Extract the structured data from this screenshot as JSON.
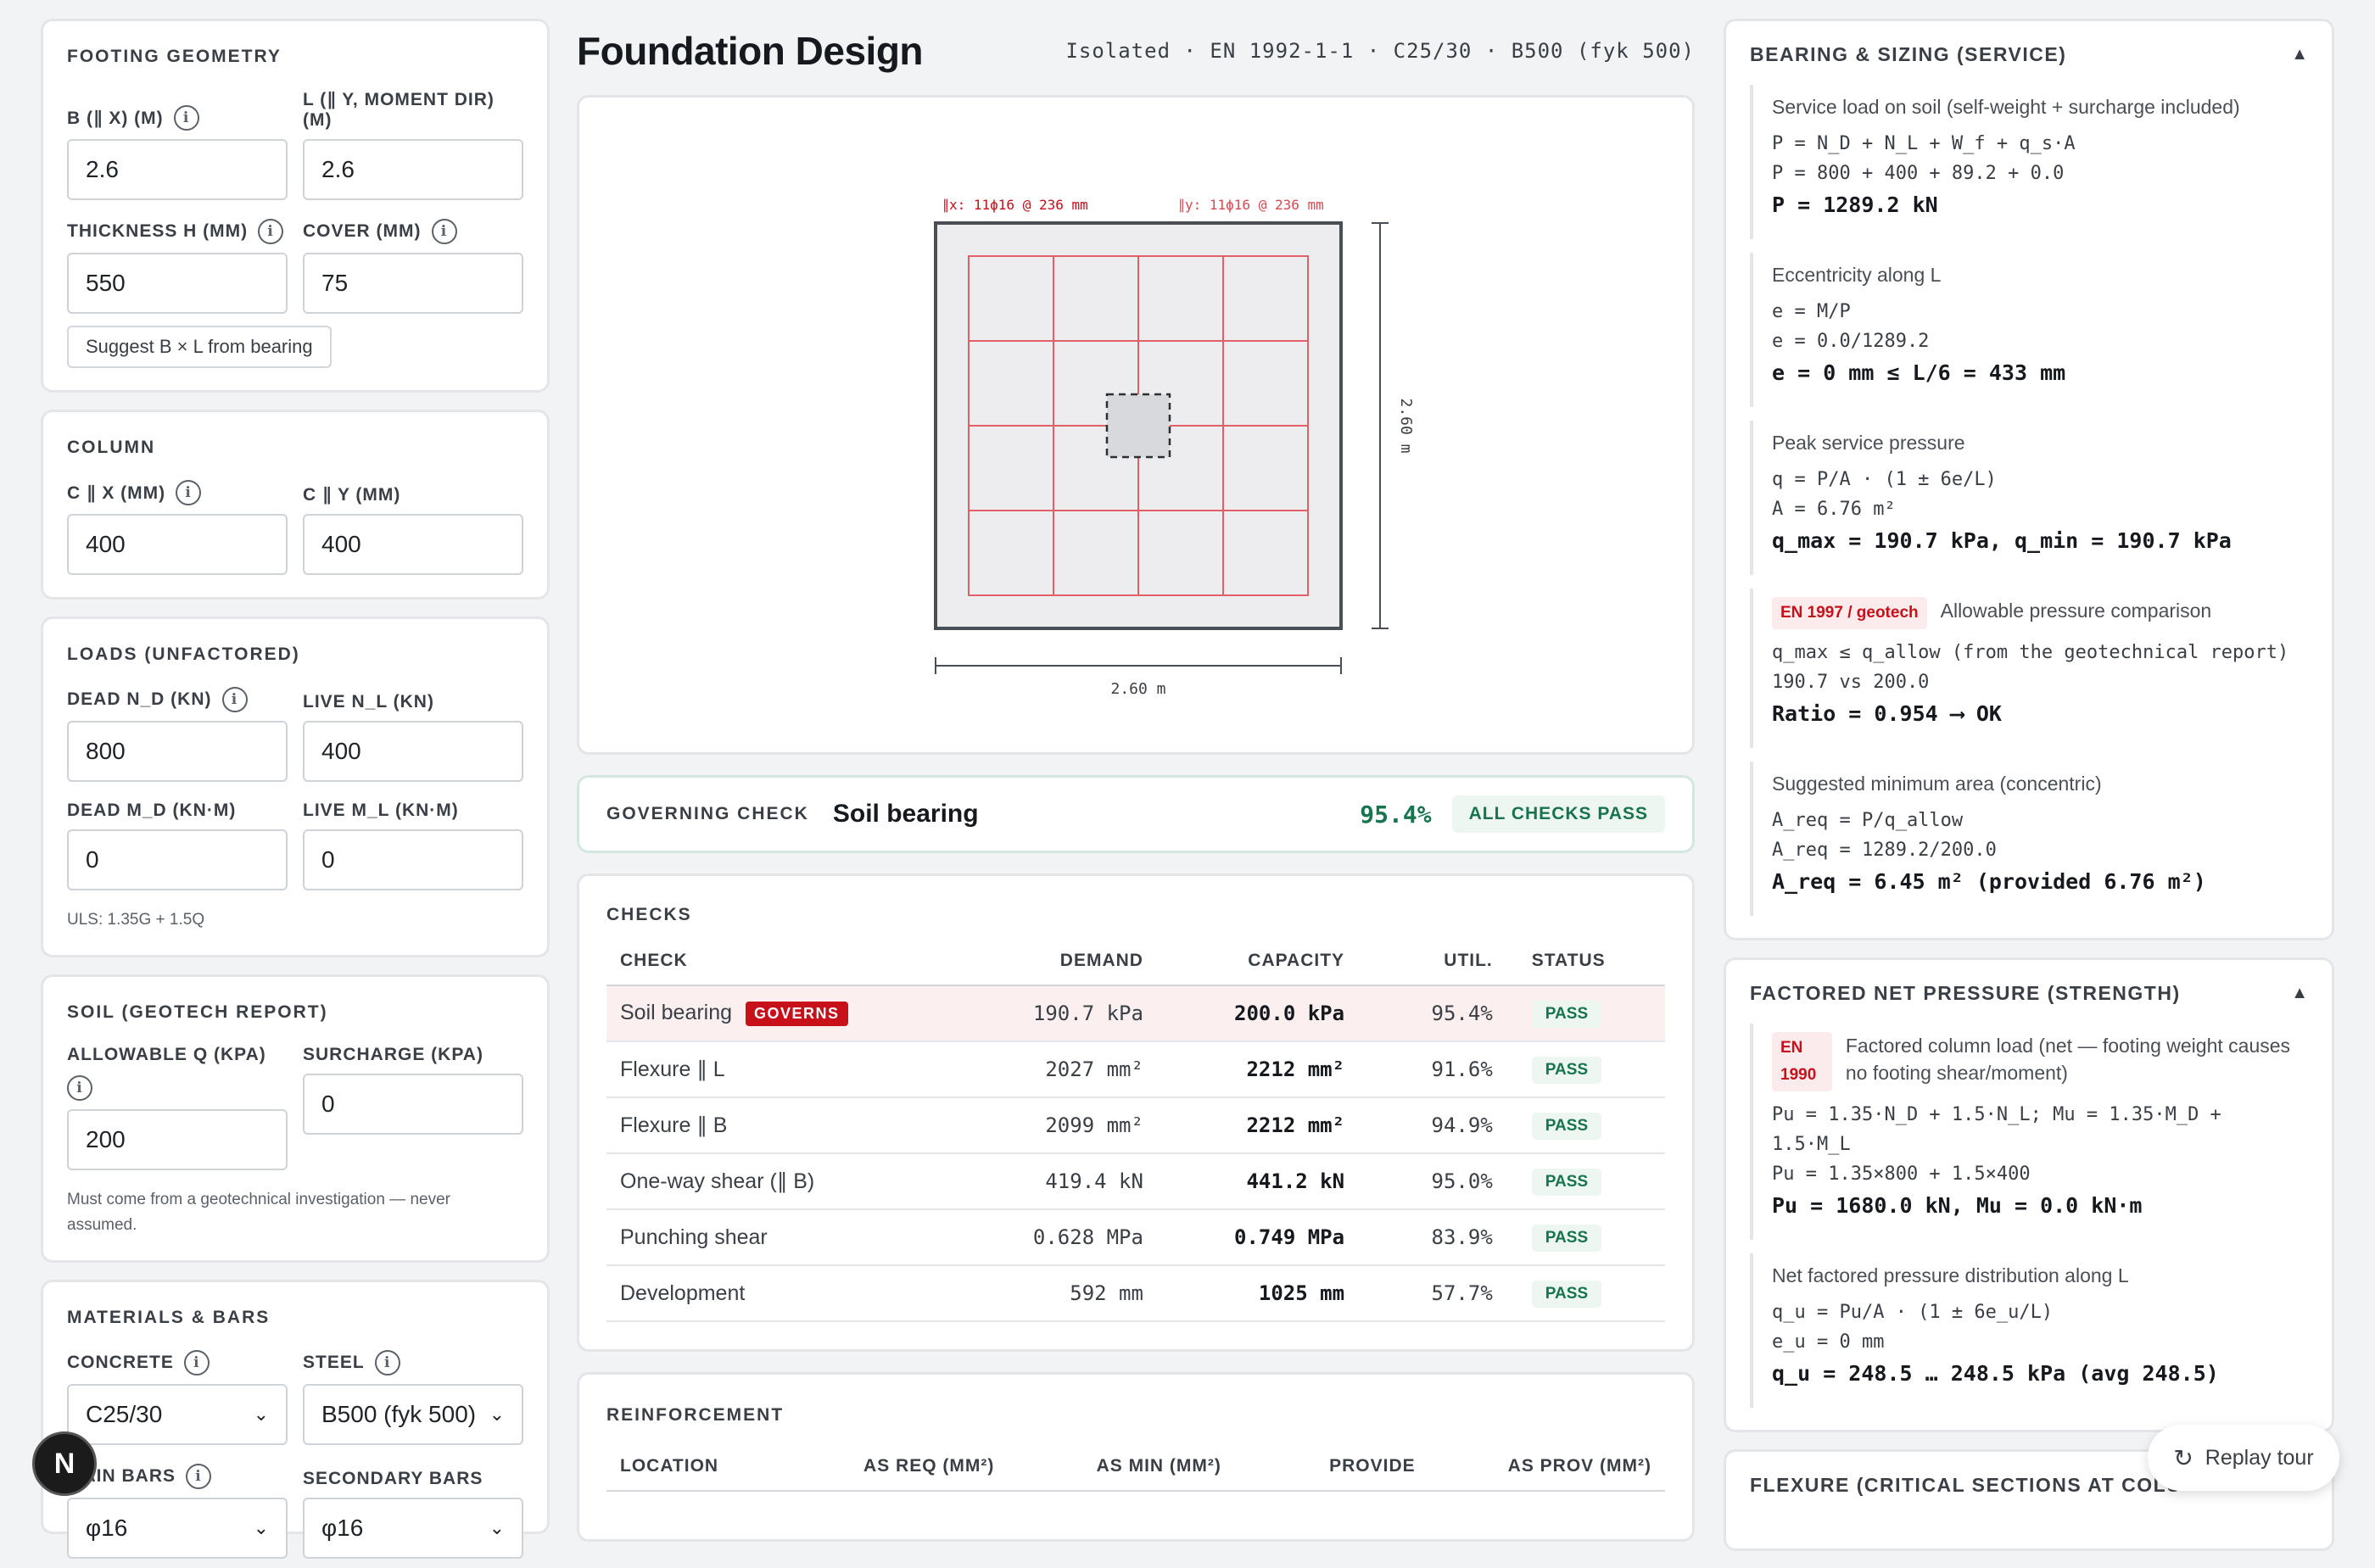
{
  "left": {
    "geometry": {
      "title": "FOOTING GEOMETRY",
      "b_label": "B (∥ X) (M)",
      "b_value": "2.6",
      "l_label": "L (∥ Y, MOMENT DIR) (M)",
      "l_value": "2.6",
      "h_label": "THICKNESS H (MM)",
      "h_value": "550",
      "cover_label": "COVER (MM)",
      "cover_value": "75",
      "suggest_button": "Suggest B × L from bearing"
    },
    "column": {
      "title": "COLUMN",
      "cx_label": "C ∥ X (MM)",
      "cx_value": "400",
      "cy_label": "C ∥ Y (MM)",
      "cy_value": "400"
    },
    "loads": {
      "title": "LOADS (UNFACTORED)",
      "nd_label": "DEAD N_D (KN)",
      "nd_value": "800",
      "nl_label": "LIVE N_L (KN)",
      "nl_value": "400",
      "md_label": "DEAD M_D (KN·M)",
      "md_value": "0",
      "ml_label": "LIVE M_L (KN·M)",
      "ml_value": "0",
      "uls_note": "ULS: 1.35G + 1.5Q"
    },
    "soil": {
      "title": "SOIL (GEOTECH REPORT)",
      "q_label": "ALLOWABLE Q (KPA)",
      "q_value": "200",
      "sur_label": "SURCHARGE (KPA)",
      "sur_value": "0",
      "note": "Must come from a geotechnical investigation — never assumed."
    },
    "materials": {
      "title": "MATERIALS & BARS",
      "concrete_label": "CONCRETE",
      "concrete_value": "C25/30",
      "steel_label": "STEEL",
      "steel_value": "B500 (fyk 500)",
      "main_label": "MAIN BARS",
      "main_value": "φ16",
      "secondary_label": "SECONDARY BARS",
      "secondary_value": "φ16"
    }
  },
  "center": {
    "title": "Foundation Design",
    "spec": "Isolated · EN 1992-1-1 · C25/30 · B500 (fyk 500)",
    "drawing": {
      "bars_x": "∥x: 11ϕ16 @ 236 mm",
      "bars_y": "∥y: 11ϕ16 @ 236 mm",
      "dim_b": "2.60 m",
      "dim_l": "2.60 m"
    },
    "governing": {
      "label": "GOVERNING CHECK",
      "value": "Soil bearing",
      "pct": "95.4%",
      "status": "ALL CHECKS PASS"
    },
    "checks": {
      "title": "CHECKS",
      "headers": [
        "CHECK",
        "DEMAND",
        "CAPACITY",
        "UTIL.",
        "STATUS"
      ],
      "governs_badge": "GOVERNS",
      "rows": [
        {
          "check": "Soil bearing",
          "demand": "190.7 kPa",
          "capacity": "200.0 kPa",
          "util": "95.4%",
          "status": "PASS"
        },
        {
          "check": "Flexure ∥ L",
          "demand": "2027 mm²",
          "capacity": "2212 mm²",
          "util": "91.6%",
          "status": "PASS"
        },
        {
          "check": "Flexure ∥ B",
          "demand": "2099 mm²",
          "capacity": "2212 mm²",
          "util": "94.9%",
          "status": "PASS"
        },
        {
          "check": "One-way shear (∥ B)",
          "demand": "419.4 kN",
          "capacity": "441.2 kN",
          "util": "95.0%",
          "status": "PASS"
        },
        {
          "check": "Punching shear",
          "demand": "0.628 MPa",
          "capacity": "0.749 MPa",
          "util": "83.9%",
          "status": "PASS"
        },
        {
          "check": "Development",
          "demand": "592 mm",
          "capacity": "1025 mm",
          "util": "57.7%",
          "status": "PASS"
        }
      ]
    },
    "reinforcement": {
      "title": "REINFORCEMENT",
      "headers": [
        "LOCATION",
        "AS REQ (MM²)",
        "AS MIN (MM²)",
        "PROVIDE",
        "AS PROV (MM²)"
      ]
    }
  },
  "right": {
    "bearing": {
      "title": "BEARING & SIZING (SERVICE)",
      "s1_desc": "Service load on soil (self-weight + surcharge included)",
      "s1_l1": "P = N_D + N_L + W_f + q_s·A",
      "s1_l2": "P = 800 + 400 + 89.2 + 0.0",
      "s1_res": "P = 1289.2 kN",
      "s2_desc": "Eccentricity along L",
      "s2_l1": "e = M/P",
      "s2_l2": "e = 0.0/1289.2",
      "s2_res": "e = 0 mm ≤ L/6 = 433 mm",
      "s3_desc": "Peak service pressure",
      "s3_l1": "q = P/A · (1 ± 6e/L)",
      "s3_l2": "A = 6.76 m²",
      "s3_res": "q_max = 190.7 kPa, q_min = 190.7 kPa",
      "s4_ref": "EN 1997 / geotech",
      "s4_desc": "Allowable pressure comparison",
      "s4_l1": "q_max ≤ q_allow (from the geotechnical report)",
      "s4_l2": "190.7 vs 200.0",
      "s4_res": "Ratio = 0.954 ⟶ OK",
      "s5_desc": "Suggested minimum area (concentric)",
      "s5_l1": "A_req = P/q_allow",
      "s5_l2": "A_req = 1289.2/200.0",
      "s5_res": "A_req = 6.45 m² (provided 6.76 m²)"
    },
    "factored": {
      "title": "FACTORED NET PRESSURE (STRENGTH)",
      "s1_ref": "EN 1990",
      "s1_desc": "Factored column load (net — footing weight causes no footing shear/moment)",
      "s1_l1": "Pu = 1.35·N_D + 1.5·N_L; Mu = 1.35·M_D + 1.5·M_L",
      "s1_l2": "Pu = 1.35×800 + 1.5×400",
      "s1_res": "Pu = 1680.0 kN, Mu = 0.0 kN·m",
      "s2_desc": "Net factored pressure distribution along L",
      "s2_l1": "q_u = Pu/A · (1 ± 6e_u/L)",
      "s2_l2": "e_u = 0 mm",
      "s2_res": "q_u = 248.5 … 248.5 kPa (avg 248.5)"
    },
    "flexure": {
      "title": "FLEXURE (CRITICAL SECTIONS AT COLU"
    }
  },
  "replay": "Replay tour",
  "nbadge": "N"
}
